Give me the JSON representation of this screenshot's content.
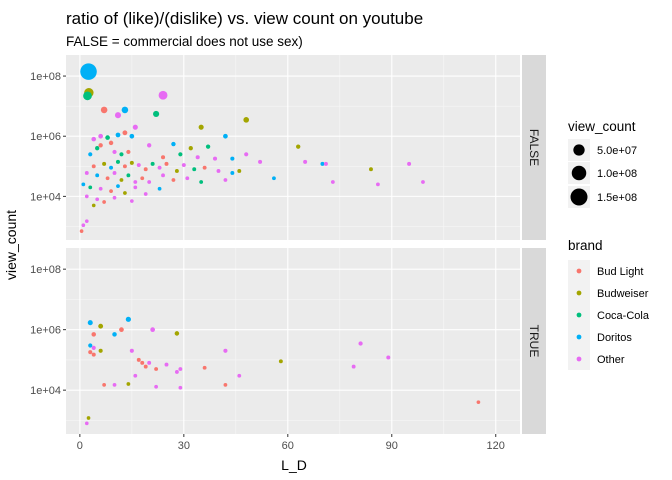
{
  "chart_data": {
    "type": "scatter",
    "title": "ratio of (like)/(dislike) vs. view count on youtube",
    "subtitle": "FALSE = commercial does not use sex)",
    "xlabel": "L_D",
    "ylabel": "view_count",
    "xlim": [
      -4,
      127
    ],
    "ylim_log10": [
      2.55,
      8.7
    ],
    "y_scale": "log10",
    "x_ticks": [
      0,
      30,
      60,
      90,
      120
    ],
    "x_tick_labels": [
      "0",
      "30",
      "60",
      "90",
      "120"
    ],
    "y_ticks": [
      10000,
      1000000,
      100000000
    ],
    "y_tick_labels": [
      "1e+04",
      "1e+06",
      "1e+08"
    ],
    "grid": true,
    "facets": [
      {
        "label": "FALSE",
        "points": [
          {
            "x": 2.5,
            "y": 140000000,
            "brand": "Doritos",
            "size": 140000000
          },
          {
            "x": 2.6,
            "y": 28000000,
            "brand": "Budweiser",
            "size": 28000000
          },
          {
            "x": 2.2,
            "y": 22000000,
            "brand": "Coca-Cola",
            "size": 22000000
          },
          {
            "x": 24,
            "y": 23000000,
            "brand": "Other",
            "size": 23000000
          },
          {
            "x": 7,
            "y": 7500000,
            "brand": "Bud Light",
            "size": 7500000
          },
          {
            "x": 13,
            "y": 7500000,
            "brand": "Doritos",
            "size": 7500000
          },
          {
            "x": 11,
            "y": 5000000,
            "brand": "Other",
            "size": 5000000
          },
          {
            "x": 22,
            "y": 5500000,
            "brand": "Coca-Cola",
            "size": 5500000
          },
          {
            "x": 48,
            "y": 3500000,
            "brand": "Budweiser",
            "size": 3500000
          },
          {
            "x": 35,
            "y": 2000000,
            "brand": "Budweiser",
            "size": 2000000
          },
          {
            "x": 16,
            "y": 2000000,
            "brand": "Other",
            "size": 2000000
          },
          {
            "x": 13,
            "y": 1300000,
            "brand": "Bud Light",
            "size": 1300000
          },
          {
            "x": 11,
            "y": 1100000,
            "brand": "Doritos",
            "size": 1100000
          },
          {
            "x": 15,
            "y": 1000000,
            "brand": "Doritos",
            "size": 1000000
          },
          {
            "x": 42,
            "y": 1000000,
            "brand": "Doritos",
            "size": 1000000
          },
          {
            "x": 8,
            "y": 900000,
            "brand": "Coca-Cola",
            "size": 900000
          },
          {
            "x": 6,
            "y": 1000000,
            "brand": "Other",
            "size": 1000000
          },
          {
            "x": 4,
            "y": 800000,
            "brand": "Other",
            "size": 800000
          },
          {
            "x": 9,
            "y": 600000,
            "brand": "Bud Light",
            "size": 600000
          },
          {
            "x": 27,
            "y": 550000,
            "brand": "Doritos",
            "size": 550000
          },
          {
            "x": 63,
            "y": 450000,
            "brand": "Budweiser",
            "size": 450000
          },
          {
            "x": 5,
            "y": 400000,
            "brand": "Coca-Cola",
            "size": 400000
          },
          {
            "x": 6,
            "y": 500000,
            "brand": "Bud Light",
            "size": 500000
          },
          {
            "x": 20,
            "y": 500000,
            "brand": "Other",
            "size": 500000
          },
          {
            "x": 32,
            "y": 400000,
            "brand": "Budweiser",
            "size": 400000
          },
          {
            "x": 37,
            "y": 450000,
            "brand": "Coca-Cola",
            "size": 450000
          },
          {
            "x": 10,
            "y": 300000,
            "brand": "Other",
            "size": 300000
          },
          {
            "x": 12,
            "y": 250000,
            "brand": "Coca-Cola",
            "size": 250000
          },
          {
            "x": 3,
            "y": 250000,
            "brand": "Doritos",
            "size": 250000
          },
          {
            "x": 14,
            "y": 300000,
            "brand": "Bud Light",
            "size": 300000
          },
          {
            "x": 24,
            "y": 200000,
            "brand": "Bud Light",
            "size": 200000
          },
          {
            "x": 29,
            "y": 250000,
            "brand": "Coca-Cola",
            "size": 250000
          },
          {
            "x": 34,
            "y": 200000,
            "brand": "Other",
            "size": 200000
          },
          {
            "x": 39,
            "y": 180000,
            "brand": "Other",
            "size": 180000
          },
          {
            "x": 44,
            "y": 180000,
            "brand": "Doritos",
            "size": 180000
          },
          {
            "x": 48,
            "y": 250000,
            "brand": "Other",
            "size": 250000
          },
          {
            "x": 52,
            "y": 140000,
            "brand": "Other",
            "size": 140000
          },
          {
            "x": 65,
            "y": 140000,
            "brand": "Other",
            "size": 140000
          },
          {
            "x": 70,
            "y": 120000,
            "brand": "Doritos",
            "size": 120000
          },
          {
            "x": 71,
            "y": 120000,
            "brand": "Other",
            "size": 120000
          },
          {
            "x": 84,
            "y": 80000,
            "brand": "Budweiser",
            "size": 80000
          },
          {
            "x": 95,
            "y": 120000,
            "brand": "Other",
            "size": 120000
          },
          {
            "x": 4,
            "y": 100000,
            "brand": "Bud Light",
            "size": 100000
          },
          {
            "x": 7,
            "y": 120000,
            "brand": "Budweiser",
            "size": 120000
          },
          {
            "x": 9,
            "y": 90000,
            "brand": "Doritos",
            "size": 90000
          },
          {
            "x": 11,
            "y": 140000,
            "brand": "Coca-Cola",
            "size": 140000
          },
          {
            "x": 13,
            "y": 100000,
            "brand": "Bud Light",
            "size": 100000
          },
          {
            "x": 15,
            "y": 130000,
            "brand": "Budweiser",
            "size": 130000
          },
          {
            "x": 17,
            "y": 110000,
            "brand": "Other",
            "size": 110000
          },
          {
            "x": 19,
            "y": 80000,
            "brand": "Bud Light",
            "size": 80000
          },
          {
            "x": 21,
            "y": 120000,
            "brand": "Coca-Cola",
            "size": 120000
          },
          {
            "x": 23,
            "y": 90000,
            "brand": "Other",
            "size": 90000
          },
          {
            "x": 25,
            "y": 120000,
            "brand": "Bud Light",
            "size": 120000
          },
          {
            "x": 28,
            "y": 70000,
            "brand": "Budweiser",
            "size": 70000
          },
          {
            "x": 30,
            "y": 110000,
            "brand": "Other",
            "size": 110000
          },
          {
            "x": 33,
            "y": 80000,
            "brand": "Coca-Cola",
            "size": 80000
          },
          {
            "x": 36,
            "y": 90000,
            "brand": "Bud Light",
            "size": 90000
          },
          {
            "x": 40,
            "y": 70000,
            "brand": "Other",
            "size": 70000
          },
          {
            "x": 44,
            "y": 60000,
            "brand": "Doritos",
            "size": 60000
          },
          {
            "x": 46,
            "y": 70000,
            "brand": "Budweiser",
            "size": 70000
          },
          {
            "x": 2,
            "y": 60000,
            "brand": "Other",
            "size": 60000
          },
          {
            "x": 5,
            "y": 50000,
            "brand": "Doritos",
            "size": 50000
          },
          {
            "x": 8,
            "y": 40000,
            "brand": "Bud Light",
            "size": 40000
          },
          {
            "x": 10,
            "y": 60000,
            "brand": "Other",
            "size": 60000
          },
          {
            "x": 12,
            "y": 35000,
            "brand": "Budweiser",
            "size": 35000
          },
          {
            "x": 14,
            "y": 50000,
            "brand": "Coca-Cola",
            "size": 50000
          },
          {
            "x": 16,
            "y": 30000,
            "brand": "Other",
            "size": 30000
          },
          {
            "x": 18,
            "y": 40000,
            "brand": "Bud Light",
            "size": 40000
          },
          {
            "x": 20,
            "y": 30000,
            "brand": "Other",
            "size": 30000
          },
          {
            "x": 24,
            "y": 50000,
            "brand": "Other",
            "size": 50000
          },
          {
            "x": 27,
            "y": 35000,
            "brand": "Bud Light",
            "size": 35000
          },
          {
            "x": 31,
            "y": 40000,
            "brand": "Other",
            "size": 40000
          },
          {
            "x": 35,
            "y": 30000,
            "brand": "Coca-Cola",
            "size": 30000
          },
          {
            "x": 42,
            "y": 35000,
            "brand": "Other",
            "size": 35000
          },
          {
            "x": 56,
            "y": 40000,
            "brand": "Doritos",
            "size": 40000
          },
          {
            "x": 73,
            "y": 30000,
            "brand": "Other",
            "size": 30000
          },
          {
            "x": 86,
            "y": 25000,
            "brand": "Other",
            "size": 25000
          },
          {
            "x": 99,
            "y": 30000,
            "brand": "Other",
            "size": 30000
          },
          {
            "x": 1,
            "y": 25000,
            "brand": "Doritos",
            "size": 25000
          },
          {
            "x": 3,
            "y": 20000,
            "brand": "Coca-Cola",
            "size": 20000
          },
          {
            "x": 6,
            "y": 18000,
            "brand": "Other",
            "size": 18000
          },
          {
            "x": 9,
            "y": 15000,
            "brand": "Bud Light",
            "size": 15000
          },
          {
            "x": 11,
            "y": 22000,
            "brand": "Doritos",
            "size": 22000
          },
          {
            "x": 13,
            "y": 13000,
            "brand": "Budweiser",
            "size": 13000
          },
          {
            "x": 16,
            "y": 20000,
            "brand": "Other",
            "size": 20000
          },
          {
            "x": 19,
            "y": 12000,
            "brand": "Other",
            "size": 12000
          },
          {
            "x": 23,
            "y": 18000,
            "brand": "Doritos",
            "size": 18000
          },
          {
            "x": 2,
            "y": 10000,
            "brand": "Other",
            "size": 10000
          },
          {
            "x": 5,
            "y": 8000,
            "brand": "Other",
            "size": 8000
          },
          {
            "x": 7,
            "y": 6500,
            "brand": "Bud Light",
            "size": 6500
          },
          {
            "x": 10,
            "y": 9000,
            "brand": "Other",
            "size": 9000
          },
          {
            "x": 15,
            "y": 7000,
            "brand": "Other",
            "size": 7000
          },
          {
            "x": 4,
            "y": 5000,
            "brand": "Budweiser",
            "size": 5000
          },
          {
            "x": 2,
            "y": 1500,
            "brand": "Other",
            "size": 1500
          },
          {
            "x": 0.5,
            "y": 700,
            "brand": "Bud Light",
            "size": 700
          },
          {
            "x": 1,
            "y": 1100,
            "brand": "Other",
            "size": 1100
          }
        ]
      },
      {
        "label": "TRUE",
        "points": [
          {
            "x": 3,
            "y": 1700000,
            "brand": "Doritos",
            "size": 1700000
          },
          {
            "x": 14,
            "y": 2200000,
            "brand": "Doritos",
            "size": 2200000
          },
          {
            "x": 6,
            "y": 1300000,
            "brand": "Budweiser",
            "size": 1300000
          },
          {
            "x": 12,
            "y": 1000000,
            "brand": "Bud Light",
            "size": 1000000
          },
          {
            "x": 21,
            "y": 1000000,
            "brand": "Other",
            "size": 1000000
          },
          {
            "x": 4,
            "y": 700000,
            "brand": "Bud Light",
            "size": 700000
          },
          {
            "x": 10,
            "y": 700000,
            "brand": "Doritos",
            "size": 700000
          },
          {
            "x": 28,
            "y": 750000,
            "brand": "Budweiser",
            "size": 750000
          },
          {
            "x": 3,
            "y": 300000,
            "brand": "Doritos",
            "size": 300000
          },
          {
            "x": 4,
            "y": 250000,
            "brand": "Other",
            "size": 250000
          },
          {
            "x": 6,
            "y": 200000,
            "brand": "Budweiser",
            "size": 200000
          },
          {
            "x": 3,
            "y": 180000,
            "brand": "Bud Light",
            "size": 180000
          },
          {
            "x": 4,
            "y": 150000,
            "brand": "Bud Light",
            "size": 150000
          },
          {
            "x": 15,
            "y": 200000,
            "brand": "Other",
            "size": 200000
          },
          {
            "x": 17,
            "y": 100000,
            "brand": "Bud Light",
            "size": 100000
          },
          {
            "x": 18,
            "y": 80000,
            "brand": "Bud Light",
            "size": 80000
          },
          {
            "x": 20,
            "y": 80000,
            "brand": "Other",
            "size": 80000
          },
          {
            "x": 19,
            "y": 60000,
            "brand": "Bud Light",
            "size": 60000
          },
          {
            "x": 22,
            "y": 50000,
            "brand": "Bud Light",
            "size": 50000
          },
          {
            "x": 25,
            "y": 70000,
            "brand": "Other",
            "size": 70000
          },
          {
            "x": 28,
            "y": 40000,
            "brand": "Other",
            "size": 40000
          },
          {
            "x": 29,
            "y": 50000,
            "brand": "Other",
            "size": 50000
          },
          {
            "x": 36,
            "y": 55000,
            "brand": "Bud Light",
            "size": 55000
          },
          {
            "x": 42,
            "y": 200000,
            "brand": "Other",
            "size": 200000
          },
          {
            "x": 46,
            "y": 30000,
            "brand": "Other",
            "size": 30000
          },
          {
            "x": 58,
            "y": 90000,
            "brand": "Budweiser",
            "size": 90000
          },
          {
            "x": 79,
            "y": 60000,
            "brand": "Other",
            "size": 60000
          },
          {
            "x": 81,
            "y": 350000,
            "brand": "Other",
            "size": 350000
          },
          {
            "x": 89,
            "y": 120000,
            "brand": "Other",
            "size": 120000
          },
          {
            "x": 16,
            "y": 30000,
            "brand": "Other",
            "size": 30000
          },
          {
            "x": 7,
            "y": 15000,
            "brand": "Bud Light",
            "size": 15000
          },
          {
            "x": 10,
            "y": 15000,
            "brand": "Other",
            "size": 15000
          },
          {
            "x": 14,
            "y": 16000,
            "brand": "Budweiser",
            "size": 16000
          },
          {
            "x": 22,
            "y": 13000,
            "brand": "Other",
            "size": 13000
          },
          {
            "x": 29,
            "y": 12000,
            "brand": "Other",
            "size": 12000
          },
          {
            "x": 42,
            "y": 15000,
            "brand": "Bud Light",
            "size": 15000
          },
          {
            "x": 115,
            "y": 4000,
            "brand": "Bud Light",
            "size": 4000
          },
          {
            "x": 2.5,
            "y": 1200,
            "brand": "Budweiser",
            "size": 1200
          },
          {
            "x": 2,
            "y": 800,
            "brand": "Other",
            "size": 800
          }
        ]
      }
    ],
    "size_legend": {
      "title": "view_count",
      "entries": [
        {
          "label": "5.0e+07",
          "value": 50000000
        },
        {
          "label": "1.0e+08",
          "value": 100000000
        },
        {
          "label": "1.5e+08",
          "value": 150000000
        }
      ]
    },
    "color_legend": {
      "title": "brand",
      "entries": [
        {
          "label": "Bud Light",
          "color": "#F8766D"
        },
        {
          "label": "Budweiser",
          "color": "#A3A500"
        },
        {
          "label": "Coca-Cola",
          "color": "#00BF7D"
        },
        {
          "label": "Doritos",
          "color": "#00B0F6"
        },
        {
          "label": "Other",
          "color": "#E76BF3"
        }
      ]
    },
    "legend_position": "right"
  }
}
